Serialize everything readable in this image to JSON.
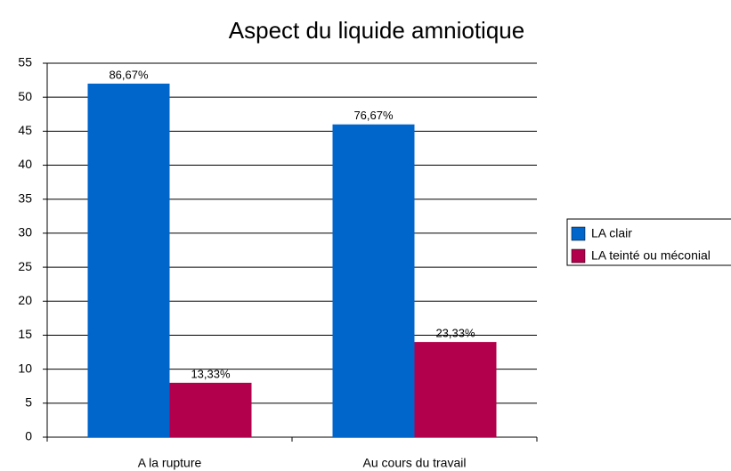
{
  "chart_data": {
    "type": "bar",
    "title": "Aspect du liquide amniotique",
    "categories": [
      "A la rupture",
      "Au cours du travail"
    ],
    "series": [
      {
        "name": "LA clair",
        "color": "#0066cc",
        "values": [
          52,
          46
        ],
        "percent_labels": [
          "86,67%",
          "76,67%"
        ]
      },
      {
        "name": "LA teinté ou méconial",
        "color": "#b3004d",
        "values": [
          8,
          14
        ],
        "percent_labels": [
          "13,33%",
          "23,33%"
        ]
      }
    ],
    "ylim": [
      0,
      55
    ],
    "yticks": [
      0,
      5,
      10,
      15,
      20,
      25,
      30,
      35,
      40,
      45,
      50,
      55
    ],
    "grid": true,
    "legend": "right"
  }
}
